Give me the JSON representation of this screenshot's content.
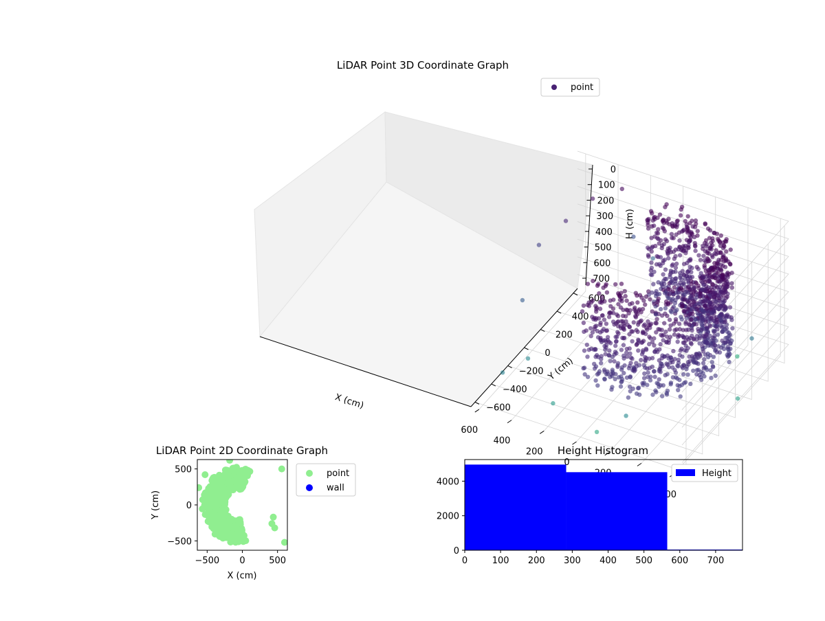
{
  "chart_data": [
    {
      "type": "scatter",
      "projection": "3d",
      "title": "LiDAR Point 3D Coordinate Graph",
      "xlabel": "X (cm)",
      "ylabel": "Y (cm)",
      "zlabel": "H (cm)",
      "xlim": [
        -650,
        650
      ],
      "ylim": [
        -650,
        650
      ],
      "zlim": [
        780,
        0
      ],
      "z_inverted": true,
      "x_ticks": [
        "−600",
        "−400",
        "−200",
        "0",
        "200",
        "400",
        "600"
      ],
      "y_ticks": [
        "−600",
        "−400",
        "−200",
        "0",
        "200",
        "400",
        "600"
      ],
      "z_ticks": [
        "0",
        "100",
        "200",
        "300",
        "400",
        "500",
        "600",
        "700"
      ],
      "grid": true,
      "colormap": "viridis (dark purple to teal)",
      "legend": {
        "placement": "top-right",
        "entries": [
          "point"
        ]
      },
      "series": [
        {
          "name": "point",
          "color": "#482173",
          "description_points": "Dense curved wall of points forming a partial ring of radius ~350-500 cm around x≈-100, y≈0, spanning heights ~0-550 cm, plus sparse outliers",
          "points": [
            [
              -560,
              -450,
              120
            ],
            [
              -600,
              300,
              500
            ],
            [
              -640,
              50,
              700
            ],
            [
              -420,
              480,
              750
            ],
            [
              300,
              500,
              30
            ],
            [
              420,
              380,
              60
            ],
            [
              520,
              250,
              150
            ],
            [
              620,
              120,
              250
            ],
            [
              560,
              -200,
              380
            ],
            [
              450,
              -350,
              600
            ],
            [
              200,
              -540,
              680
            ],
            [
              -100,
              -600,
              720
            ],
            [
              -260,
              -560,
              600
            ],
            [
              480,
              -600,
              560
            ],
            [
              260,
              560,
              320
            ],
            [
              150,
              580,
              420
            ]
          ]
        }
      ]
    },
    {
      "type": "scatter",
      "title": "LiDAR Point 2D Coordinate Graph",
      "xlabel": "X (cm)",
      "ylabel": "Y (cm)",
      "xlim": [
        -640,
        640
      ],
      "ylim": [
        -630,
        630
      ],
      "x_ticks": [
        "−500",
        "0",
        "500"
      ],
      "y_ticks": [
        "500",
        "0",
        "−500"
      ],
      "legend": {
        "placement": "outside-right",
        "entries": [
          "point",
          "wall"
        ]
      },
      "series": [
        {
          "name": "point",
          "color": "#90ee90"
        },
        {
          "name": "wall",
          "color": "#0000ff",
          "points": []
        }
      ],
      "outliers": [
        [
          -620,
          240
        ],
        [
          -530,
          420
        ],
        [
          -180,
          620
        ],
        [
          560,
          500
        ],
        [
          600,
          -520
        ],
        [
          440,
          -170
        ],
        [
          460,
          -320
        ],
        [
          420,
          -260
        ]
      ]
    },
    {
      "type": "bar",
      "subtype": "histogram",
      "title": "Height Histogram",
      "xlim": [
        0,
        775
      ],
      "ylim": [
        0,
        5250
      ],
      "x_ticks": [
        "0",
        "100",
        "200",
        "300",
        "400",
        "500",
        "600",
        "700"
      ],
      "y_ticks": [
        "0",
        "2000",
        "4000"
      ],
      "legend": {
        "placement": "top-right",
        "entries": [
          "Height"
        ]
      },
      "series": [
        {
          "name": "Height",
          "color": "#0000ff",
          "bins": [
            [
              0,
              283,
              4960
            ],
            [
              283,
              565,
              4520
            ],
            [
              565,
              775,
              40
            ]
          ]
        }
      ]
    }
  ]
}
